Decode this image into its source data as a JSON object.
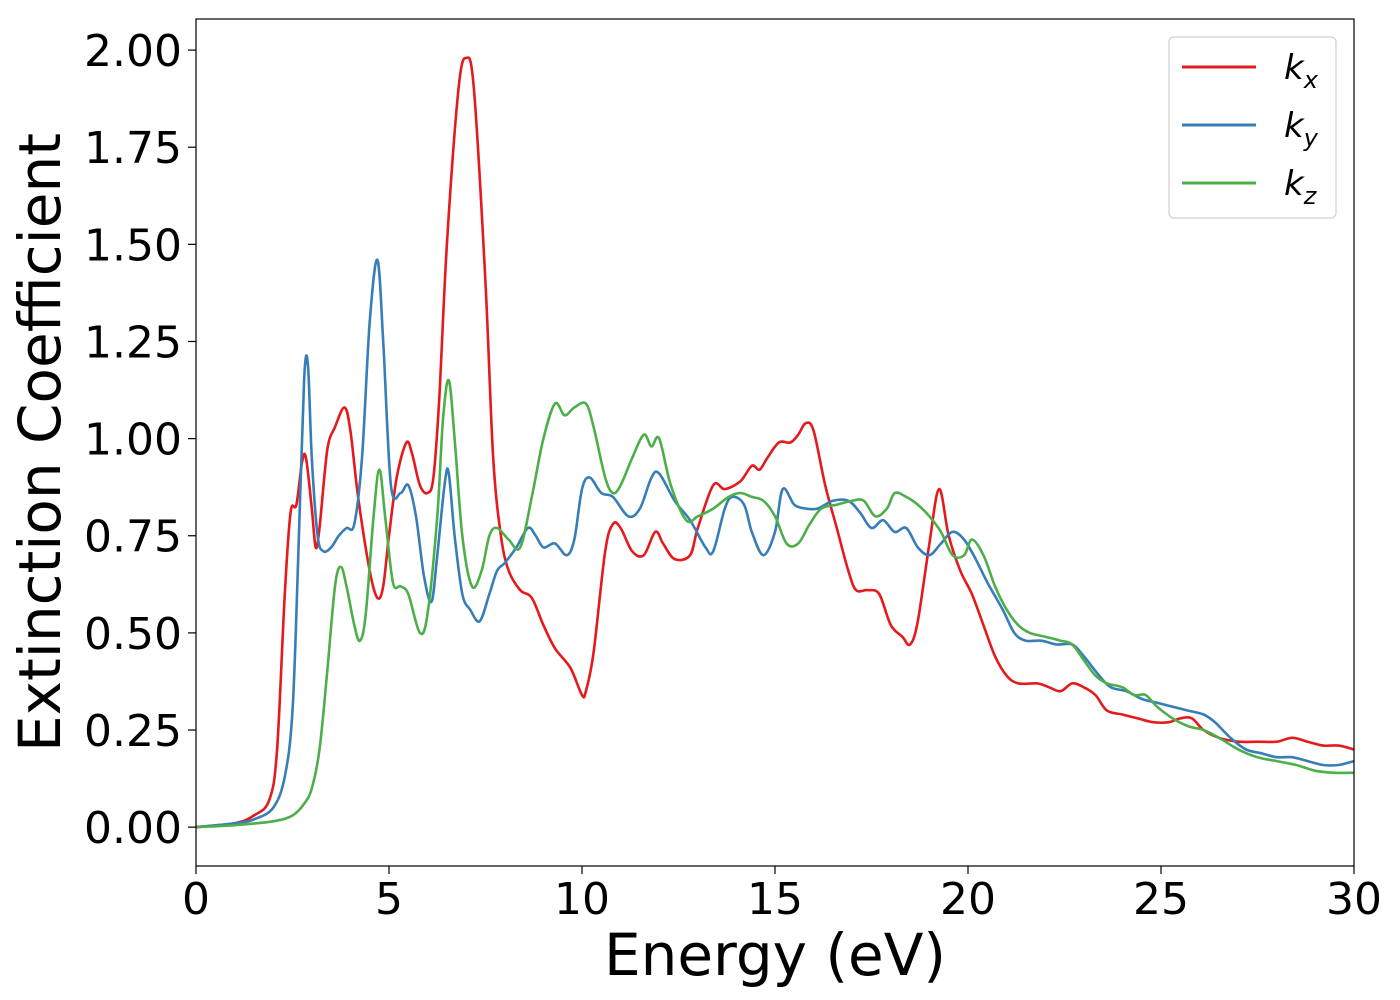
{
  "chart_data": {
    "type": "line",
    "title": "",
    "xlabel": "Energy (eV)",
    "ylabel": "Extinction Coefficient",
    "xlim": [
      0,
      30
    ],
    "ylim": [
      -0.1,
      2.08
    ],
    "xticks": [
      0,
      5,
      10,
      15,
      20,
      25,
      30
    ],
    "xtick_labels": [
      "0",
      "5",
      "10",
      "15",
      "20",
      "25",
      "30"
    ],
    "yticks": [
      0,
      0.25,
      0.5,
      0.75,
      1.0,
      1.25,
      1.5,
      1.75,
      2.0
    ],
    "ytick_labels": [
      "0.00",
      "0.25",
      "0.50",
      "0.75",
      "1.00",
      "1.25",
      "1.50",
      "1.75",
      "2.00"
    ],
    "grid": false,
    "legend_position": "top-right",
    "series": [
      {
        "name": "k",
        "subscript": "x",
        "color": "#e41a1c",
        "points": [
          [
            0,
            0
          ],
          [
            1,
            0.01
          ],
          [
            1.5,
            0.03
          ],
          [
            1.9,
            0.07
          ],
          [
            2.1,
            0.2
          ],
          [
            2.3,
            0.6
          ],
          [
            2.45,
            0.81
          ],
          [
            2.6,
            0.83
          ],
          [
            2.75,
            0.94
          ],
          [
            2.85,
            0.95
          ],
          [
            3.0,
            0.82
          ],
          [
            3.1,
            0.72
          ],
          [
            3.2,
            0.77
          ],
          [
            3.4,
            0.97
          ],
          [
            3.6,
            1.03
          ],
          [
            3.85,
            1.08
          ],
          [
            4.0,
            1.02
          ],
          [
            4.2,
            0.85
          ],
          [
            4.5,
            0.66
          ],
          [
            4.7,
            0.59
          ],
          [
            4.85,
            0.62
          ],
          [
            5.0,
            0.75
          ],
          [
            5.2,
            0.9
          ],
          [
            5.45,
            0.99
          ],
          [
            5.6,
            0.96
          ],
          [
            5.8,
            0.88
          ],
          [
            6.0,
            0.86
          ],
          [
            6.15,
            0.9
          ],
          [
            6.3,
            1.1
          ],
          [
            6.5,
            1.5
          ],
          [
            6.8,
            1.9
          ],
          [
            7.0,
            1.98
          ],
          [
            7.2,
            1.9
          ],
          [
            7.5,
            1.4
          ],
          [
            7.7,
            0.95
          ],
          [
            7.9,
            0.75
          ],
          [
            8.1,
            0.66
          ],
          [
            8.4,
            0.61
          ],
          [
            8.7,
            0.59
          ],
          [
            9.0,
            0.52
          ],
          [
            9.3,
            0.46
          ],
          [
            9.7,
            0.41
          ],
          [
            10.0,
            0.34
          ],
          [
            10.1,
            0.35
          ],
          [
            10.3,
            0.45
          ],
          [
            10.6,
            0.71
          ],
          [
            10.8,
            0.78
          ],
          [
            11.0,
            0.77
          ],
          [
            11.3,
            0.71
          ],
          [
            11.6,
            0.7
          ],
          [
            11.9,
            0.76
          ],
          [
            12.1,
            0.73
          ],
          [
            12.4,
            0.69
          ],
          [
            12.8,
            0.7
          ],
          [
            13.0,
            0.77
          ],
          [
            13.4,
            0.88
          ],
          [
            13.7,
            0.87
          ],
          [
            14.1,
            0.89
          ],
          [
            14.4,
            0.93
          ],
          [
            14.6,
            0.92
          ],
          [
            14.8,
            0.95
          ],
          [
            15.1,
            0.99
          ],
          [
            15.4,
            0.99
          ],
          [
            15.6,
            1.01
          ],
          [
            15.8,
            1.04
          ],
          [
            16.0,
            1.02
          ],
          [
            16.3,
            0.88
          ],
          [
            16.6,
            0.77
          ],
          [
            16.9,
            0.66
          ],
          [
            17.1,
            0.61
          ],
          [
            17.4,
            0.61
          ],
          [
            17.7,
            0.6
          ],
          [
            18.0,
            0.52
          ],
          [
            18.3,
            0.49
          ],
          [
            18.5,
            0.47
          ],
          [
            18.7,
            0.53
          ],
          [
            19.0,
            0.73
          ],
          [
            19.25,
            0.87
          ],
          [
            19.5,
            0.75
          ],
          [
            19.8,
            0.66
          ],
          [
            20.1,
            0.6
          ],
          [
            20.4,
            0.52
          ],
          [
            20.7,
            0.44
          ],
          [
            21.0,
            0.39
          ],
          [
            21.3,
            0.37
          ],
          [
            21.8,
            0.37
          ],
          [
            22.1,
            0.36
          ],
          [
            22.4,
            0.35
          ],
          [
            22.7,
            0.37
          ],
          [
            23.0,
            0.36
          ],
          [
            23.3,
            0.34
          ],
          [
            23.6,
            0.3
          ],
          [
            24.0,
            0.29
          ],
          [
            24.4,
            0.28
          ],
          [
            24.8,
            0.27
          ],
          [
            25.2,
            0.27
          ],
          [
            25.5,
            0.28
          ],
          [
            25.8,
            0.28
          ],
          [
            26.1,
            0.25
          ],
          [
            26.5,
            0.23
          ],
          [
            27.0,
            0.22
          ],
          [
            27.5,
            0.22
          ],
          [
            28.0,
            0.22
          ],
          [
            28.4,
            0.23
          ],
          [
            28.8,
            0.22
          ],
          [
            29.2,
            0.21
          ],
          [
            29.6,
            0.21
          ],
          [
            30.0,
            0.2
          ]
        ]
      },
      {
        "name": "k",
        "subscript": "y",
        "color": "#377eb8",
        "points": [
          [
            0,
            0
          ],
          [
            1,
            0.01
          ],
          [
            1.5,
            0.02
          ],
          [
            2.0,
            0.05
          ],
          [
            2.3,
            0.13
          ],
          [
            2.5,
            0.3
          ],
          [
            2.65,
            0.7
          ],
          [
            2.8,
            1.15
          ],
          [
            2.9,
            1.19
          ],
          [
            3.0,
            0.95
          ],
          [
            3.15,
            0.75
          ],
          [
            3.3,
            0.71
          ],
          [
            3.5,
            0.72
          ],
          [
            3.7,
            0.75
          ],
          [
            3.9,
            0.77
          ],
          [
            4.1,
            0.78
          ],
          [
            4.3,
            0.95
          ],
          [
            4.5,
            1.3
          ],
          [
            4.7,
            1.46
          ],
          [
            4.85,
            1.25
          ],
          [
            5.05,
            0.88
          ],
          [
            5.3,
            0.86
          ],
          [
            5.5,
            0.88
          ],
          [
            5.7,
            0.8
          ],
          [
            5.9,
            0.65
          ],
          [
            6.1,
            0.58
          ],
          [
            6.25,
            0.7
          ],
          [
            6.45,
            0.89
          ],
          [
            6.55,
            0.91
          ],
          [
            6.7,
            0.75
          ],
          [
            6.9,
            0.6
          ],
          [
            7.1,
            0.56
          ],
          [
            7.35,
            0.53
          ],
          [
            7.6,
            0.6
          ],
          [
            7.8,
            0.66
          ],
          [
            8.0,
            0.68
          ],
          [
            8.3,
            0.72
          ],
          [
            8.6,
            0.77
          ],
          [
            8.8,
            0.75
          ],
          [
            9.0,
            0.72
          ],
          [
            9.3,
            0.73
          ],
          [
            9.6,
            0.7
          ],
          [
            9.8,
            0.74
          ],
          [
            10.0,
            0.87
          ],
          [
            10.2,
            0.9
          ],
          [
            10.5,
            0.86
          ],
          [
            10.8,
            0.85
          ],
          [
            11.2,
            0.8
          ],
          [
            11.5,
            0.82
          ],
          [
            11.8,
            0.9
          ],
          [
            12.0,
            0.91
          ],
          [
            12.4,
            0.84
          ],
          [
            12.8,
            0.79
          ],
          [
            13.2,
            0.72
          ],
          [
            13.4,
            0.71
          ],
          [
            13.7,
            0.82
          ],
          [
            13.9,
            0.85
          ],
          [
            14.2,
            0.83
          ],
          [
            14.4,
            0.76
          ],
          [
            14.7,
            0.7
          ],
          [
            15.0,
            0.76
          ],
          [
            15.2,
            0.87
          ],
          [
            15.5,
            0.83
          ],
          [
            15.8,
            0.82
          ],
          [
            16.1,
            0.82
          ],
          [
            16.5,
            0.84
          ],
          [
            16.9,
            0.84
          ],
          [
            17.2,
            0.81
          ],
          [
            17.5,
            0.77
          ],
          [
            17.8,
            0.79
          ],
          [
            18.1,
            0.76
          ],
          [
            18.4,
            0.77
          ],
          [
            18.7,
            0.72
          ],
          [
            19.0,
            0.7
          ],
          [
            19.3,
            0.73
          ],
          [
            19.6,
            0.76
          ],
          [
            19.9,
            0.74
          ],
          [
            20.2,
            0.69
          ],
          [
            20.5,
            0.63
          ],
          [
            20.9,
            0.56
          ],
          [
            21.2,
            0.5
          ],
          [
            21.5,
            0.48
          ],
          [
            21.9,
            0.48
          ],
          [
            22.3,
            0.47
          ],
          [
            22.7,
            0.47
          ],
          [
            23.0,
            0.44
          ],
          [
            23.4,
            0.39
          ],
          [
            23.7,
            0.36
          ],
          [
            24.1,
            0.35
          ],
          [
            24.5,
            0.33
          ],
          [
            24.9,
            0.32
          ],
          [
            25.3,
            0.31
          ],
          [
            25.7,
            0.3
          ],
          [
            26.1,
            0.29
          ],
          [
            26.4,
            0.27
          ],
          [
            26.8,
            0.23
          ],
          [
            27.2,
            0.2
          ],
          [
            27.6,
            0.19
          ],
          [
            28.0,
            0.18
          ],
          [
            28.4,
            0.18
          ],
          [
            28.8,
            0.17
          ],
          [
            29.2,
            0.16
          ],
          [
            29.6,
            0.16
          ],
          [
            30.0,
            0.17
          ]
        ]
      },
      {
        "name": "k",
        "subscript": "z",
        "color": "#4daf4a",
        "points": [
          [
            0,
            0
          ],
          [
            1,
            0.005
          ],
          [
            2.0,
            0.015
          ],
          [
            2.5,
            0.03
          ],
          [
            2.8,
            0.06
          ],
          [
            3.0,
            0.1
          ],
          [
            3.2,
            0.2
          ],
          [
            3.4,
            0.4
          ],
          [
            3.6,
            0.62
          ],
          [
            3.75,
            0.67
          ],
          [
            3.9,
            0.62
          ],
          [
            4.1,
            0.52
          ],
          [
            4.25,
            0.48
          ],
          [
            4.4,
            0.55
          ],
          [
            4.6,
            0.8
          ],
          [
            4.75,
            0.92
          ],
          [
            4.9,
            0.8
          ],
          [
            5.1,
            0.63
          ],
          [
            5.3,
            0.62
          ],
          [
            5.5,
            0.6
          ],
          [
            5.8,
            0.5
          ],
          [
            6.0,
            0.55
          ],
          [
            6.25,
            0.8
          ],
          [
            6.4,
            1.05
          ],
          [
            6.55,
            1.15
          ],
          [
            6.7,
            1.0
          ],
          [
            6.9,
            0.75
          ],
          [
            7.15,
            0.62
          ],
          [
            7.4,
            0.66
          ],
          [
            7.6,
            0.75
          ],
          [
            7.8,
            0.77
          ],
          [
            8.1,
            0.74
          ],
          [
            8.4,
            0.72
          ],
          [
            8.7,
            0.85
          ],
          [
            9.0,
            1.0
          ],
          [
            9.3,
            1.09
          ],
          [
            9.55,
            1.06
          ],
          [
            9.8,
            1.08
          ],
          [
            10.1,
            1.09
          ],
          [
            10.3,
            1.03
          ],
          [
            10.6,
            0.9
          ],
          [
            10.8,
            0.86
          ],
          [
            11.0,
            0.88
          ],
          [
            11.3,
            0.95
          ],
          [
            11.6,
            1.01
          ],
          [
            11.8,
            0.98
          ],
          [
            12.0,
            1.0
          ],
          [
            12.3,
            0.88
          ],
          [
            12.7,
            0.79
          ],
          [
            13.0,
            0.8
          ],
          [
            13.4,
            0.82
          ],
          [
            13.8,
            0.85
          ],
          [
            14.1,
            0.86
          ],
          [
            14.4,
            0.85
          ],
          [
            14.7,
            0.84
          ],
          [
            15.0,
            0.8
          ],
          [
            15.3,
            0.73
          ],
          [
            15.6,
            0.73
          ],
          [
            15.9,
            0.78
          ],
          [
            16.2,
            0.82
          ],
          [
            16.6,
            0.83
          ],
          [
            17.0,
            0.84
          ],
          [
            17.3,
            0.84
          ],
          [
            17.6,
            0.8
          ],
          [
            17.9,
            0.82
          ],
          [
            18.1,
            0.86
          ],
          [
            18.4,
            0.85
          ],
          [
            18.7,
            0.83
          ],
          [
            19.0,
            0.8
          ],
          [
            19.3,
            0.76
          ],
          [
            19.6,
            0.7
          ],
          [
            19.9,
            0.7
          ],
          [
            20.1,
            0.74
          ],
          [
            20.4,
            0.7
          ],
          [
            20.7,
            0.62
          ],
          [
            21.0,
            0.56
          ],
          [
            21.3,
            0.52
          ],
          [
            21.6,
            0.5
          ],
          [
            22.0,
            0.49
          ],
          [
            22.4,
            0.48
          ],
          [
            22.7,
            0.47
          ],
          [
            23.0,
            0.43
          ],
          [
            23.3,
            0.39
          ],
          [
            23.6,
            0.37
          ],
          [
            24.0,
            0.36
          ],
          [
            24.3,
            0.34
          ],
          [
            24.6,
            0.34
          ],
          [
            24.9,
            0.31
          ],
          [
            25.3,
            0.28
          ],
          [
            25.7,
            0.26
          ],
          [
            26.1,
            0.25
          ],
          [
            26.5,
            0.23
          ],
          [
            27.0,
            0.2
          ],
          [
            27.5,
            0.18
          ],
          [
            28.0,
            0.17
          ],
          [
            28.5,
            0.16
          ],
          [
            29.0,
            0.145
          ],
          [
            29.5,
            0.14
          ],
          [
            30.0,
            0.14
          ]
        ]
      }
    ]
  }
}
